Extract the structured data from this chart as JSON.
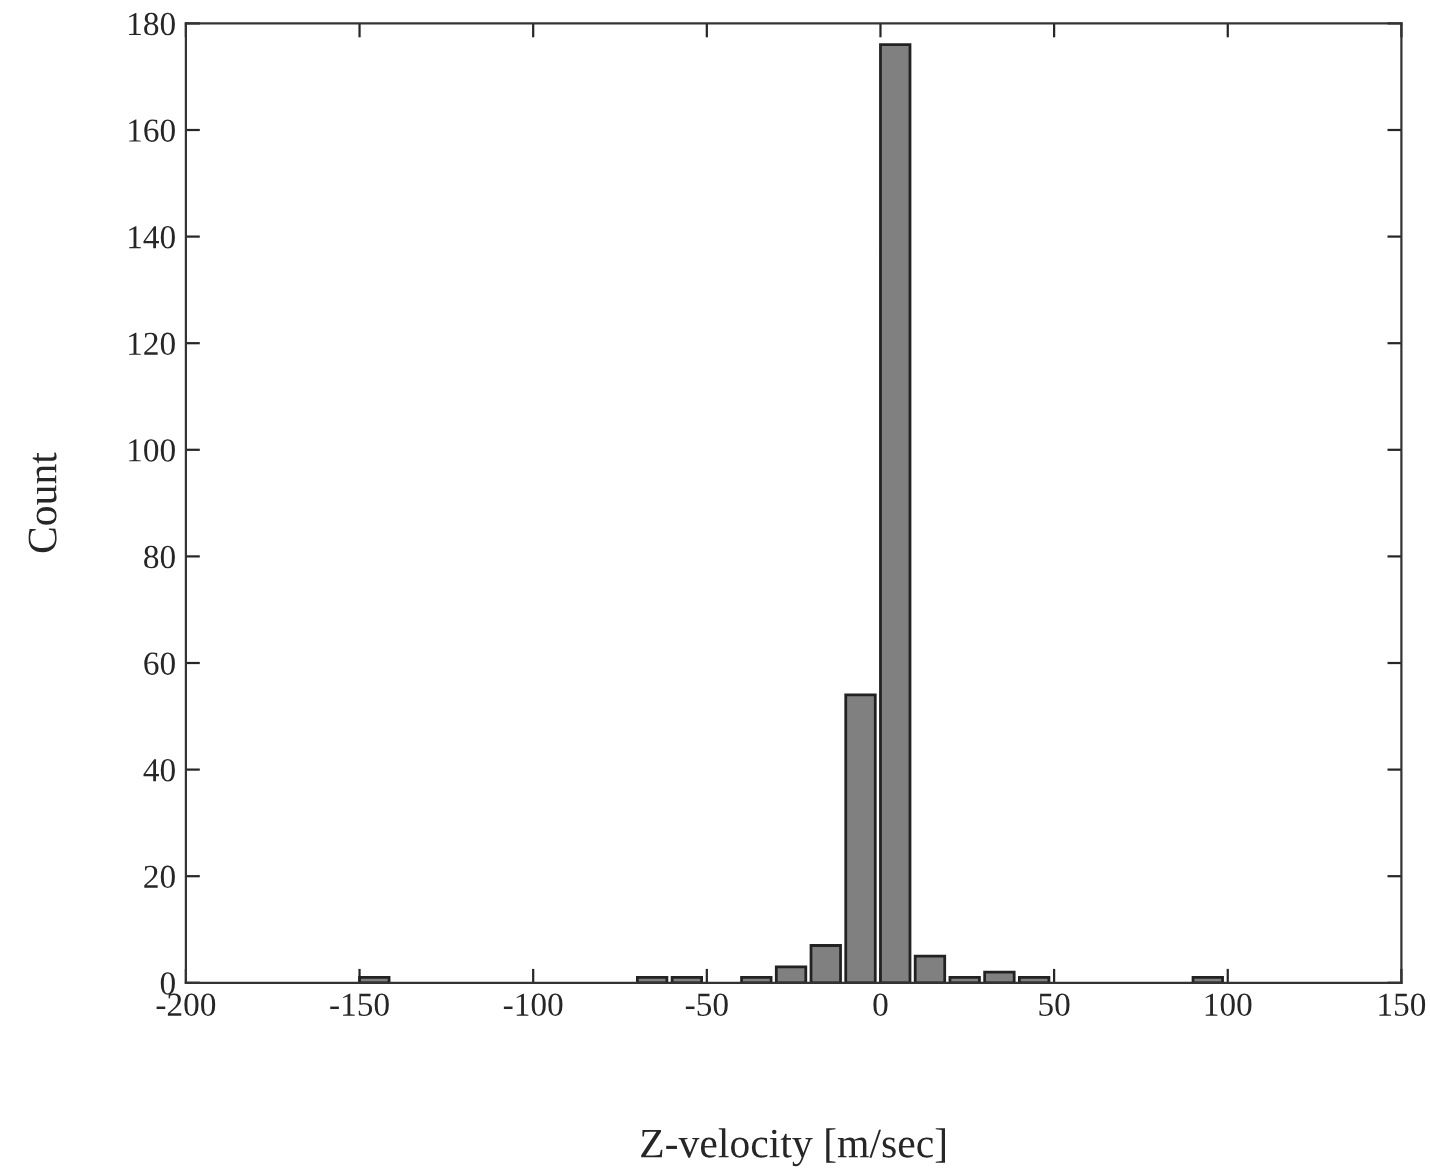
{
  "chart_data": {
    "type": "histogram",
    "xlabel": "Z-velocity [m/sec]",
    "ylabel": "Count",
    "bins": [
      -150,
      -140,
      -130,
      -120,
      -110,
      -100,
      -90,
      -80,
      -70,
      -60,
      -50,
      -40,
      -30,
      -20,
      -10,
      0,
      10,
      20,
      30,
      40,
      50,
      60,
      70,
      80,
      90,
      100
    ],
    "values": [
      1,
      0,
      0,
      0,
      0,
      0,
      0,
      0,
      1,
      1,
      0,
      1,
      3,
      7,
      54,
      176,
      5,
      1,
      2,
      1,
      0,
      0,
      0,
      0,
      1
    ],
    "color": "#808080",
    "xlim": [
      -200,
      150
    ],
    "xticks": [
      -200,
      -150,
      -100,
      -50,
      0,
      50,
      100,
      150
    ],
    "ylim": [
      0,
      180
    ],
    "yticks": [
      0,
      20,
      40,
      60,
      80,
      100,
      120,
      140,
      160,
      180
    ],
    "grid": false,
    "legend": false
  }
}
